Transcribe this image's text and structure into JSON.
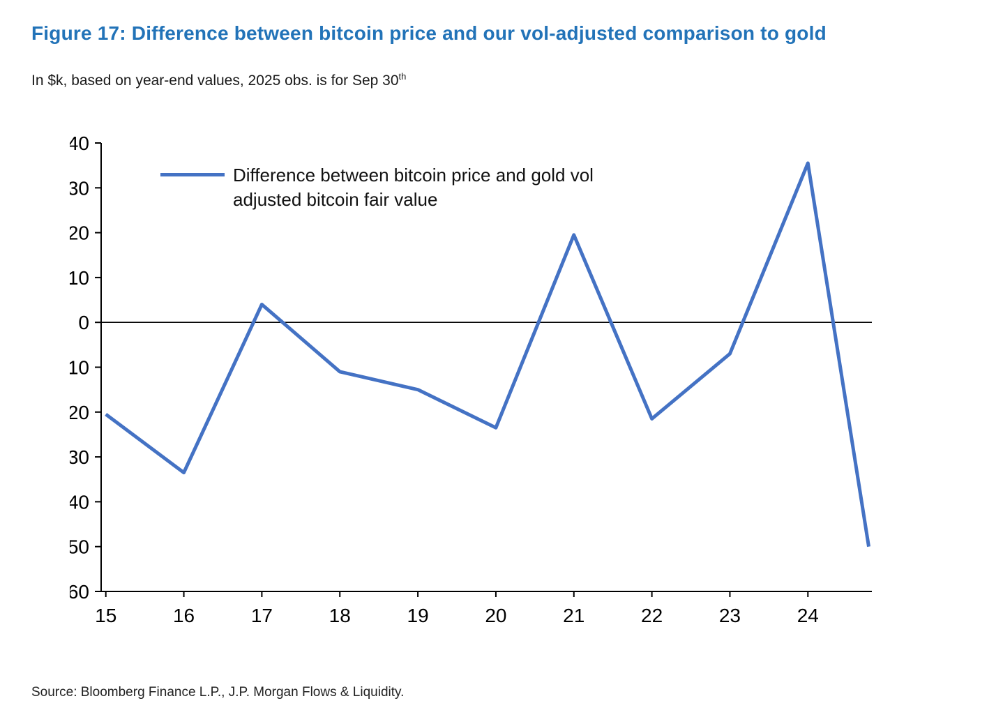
{
  "figure": {
    "title": "Figure 17: Difference between bitcoin price and our vol-adjusted comparison to gold",
    "subtitle": "In $k, based on year-end values, 2025 obs. is for Sep 30",
    "subtitle_sup": "th",
    "source": "Source: Bloomberg Finance L.P., J.P. Morgan Flows & Liquidity."
  },
  "colors": {
    "title": "#2273b8",
    "line": "#4472c4",
    "axis": "#000000",
    "tick_text": "#000000"
  },
  "chart_data": {
    "type": "line",
    "title": "Figure 17: Difference between bitcoin price and our vol-adjusted comparison to gold",
    "subtitle": "In $k, based on year-end values, 2025 obs. is for Sep 30th",
    "series": [
      {
        "name": "Difference between bitcoin price and gold vol adjusted bitcoin fair value",
        "x": [
          15,
          16,
          17,
          18,
          19,
          20,
          21,
          22,
          23,
          24,
          24.78
        ],
        "values": [
          -20.5,
          -33.5,
          4,
          -11,
          -15,
          -23.5,
          19.5,
          -21.5,
          -7,
          35.5,
          -50
        ]
      }
    ],
    "xticks": [
      15,
      16,
      17,
      18,
      19,
      20,
      21,
      22,
      23,
      24
    ],
    "xlim": [
      14.94,
      24.82
    ],
    "ylim": [
      -60,
      40
    ],
    "yticks": [
      40,
      30,
      20,
      10,
      0,
      -10,
      -20,
      -30,
      -40,
      -50,
      -60
    ],
    "zero_line": true,
    "grid": false,
    "legend_position": "top-left-inside",
    "line_width": 5
  }
}
